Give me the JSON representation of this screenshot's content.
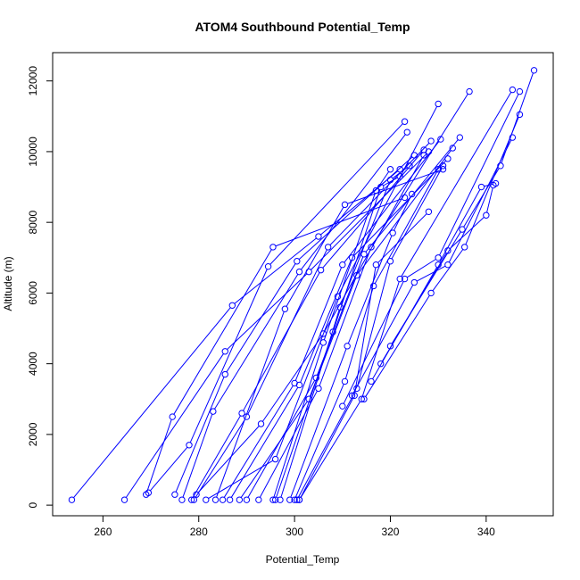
{
  "chart_data": {
    "type": "line",
    "title": "ATOM4 Southbound Potential_Temp",
    "xlabel": "Potential_Temp",
    "ylabel": "Altitude (m)",
    "xlim": [
      249.5,
      354
    ],
    "ylim": [
      -300,
      12800
    ],
    "xticks": [
      260,
      280,
      300,
      320,
      340
    ],
    "yticks": [
      0,
      2000,
      4000,
      6000,
      8000,
      10000,
      12000
    ],
    "grid": false,
    "legend": "none",
    "series_color": "#0000ff",
    "series": [
      {
        "x": [
          253.5,
          287,
          305,
          322
        ],
        "y": [
          150,
          5650,
          7600,
          9500
        ]
      },
      {
        "x": [
          264.5,
          285.5,
          303,
          328
        ],
        "y": [
          150,
          4350,
          6600,
          10000
        ]
      },
      {
        "x": [
          269,
          274.5,
          295.5,
          323
        ],
        "y": [
          300,
          2500,
          7300,
          8700
        ]
      },
      {
        "x": [
          269.5,
          278,
          294.5,
          323
        ],
        "y": [
          350,
          1700,
          6750,
          10850
        ]
      },
      {
        "x": [
          275,
          285.5,
          300.5,
          325
        ],
        "y": [
          300,
          3700,
          6900,
          9900
        ]
      },
      {
        "x": [
          276.5,
          283,
          301,
          323.5
        ],
        "y": [
          150,
          2650,
          6600,
          10550
        ]
      },
      {
        "x": [
          278.5,
          289,
          305.5,
          327
        ],
        "y": [
          150,
          2600,
          6650,
          10050
        ]
      },
      {
        "x": [
          279,
          290,
          307,
          328.5
        ],
        "y": [
          150,
          2500,
          7300,
          10300
        ]
      },
      {
        "x": [
          279.5,
          293,
          306,
          327
        ],
        "y": [
          300,
          2300,
          4850,
          9900
        ]
      },
      {
        "x": [
          281.5,
          296,
          309,
          330
        ],
        "y": [
          150,
          1300,
          5900,
          11350
        ]
      },
      {
        "x": [
          283.5,
          298,
          310.5,
          331
        ],
        "y": [
          150,
          5550,
          8500,
          9500
        ]
      },
      {
        "x": [
          285,
          300,
          310,
          330.5
        ],
        "y": [
          150,
          3450,
          6800,
          10350
        ]
      },
      {
        "x": [
          286.5,
          301,
          312,
          332
        ],
        "y": [
          150,
          3400,
          7000,
          9800
        ]
      },
      {
        "x": [
          288.5,
          303,
          313,
          333
        ],
        "y": [
          150,
          3000,
          6500,
          10100
        ]
      },
      {
        "x": [
          290,
          304.5,
          314.5,
          334.5
        ],
        "y": [
          150,
          3600,
          7100,
          10400
        ]
      },
      {
        "x": [
          292.5,
          305,
          316,
          336.5
        ],
        "y": [
          150,
          3300,
          7300,
          11700
        ]
      },
      {
        "x": [
          295.5,
          306,
          317,
          320
        ],
        "y": [
          150,
          4600,
          8900,
          9500
        ]
      },
      {
        "x": [
          296,
          308,
          318,
          322
        ],
        "y": [
          150,
          4900,
          9000,
          9300
        ]
      },
      {
        "x": [
          297,
          309.5,
          320,
          324
        ],
        "y": [
          150,
          5600,
          9200,
          9600
        ]
      },
      {
        "x": [
          299,
          311,
          320.5,
          324.5
        ],
        "y": [
          150,
          4500,
          7700,
          8800
        ]
      },
      {
        "x": [
          300,
          310.5,
          316.5,
          330
        ],
        "y": [
          150,
          3500,
          6200,
          9500
        ]
      },
      {
        "x": [
          301,
          312.5,
          317,
          328
        ],
        "y": [
          150,
          3100,
          6800,
          8300
        ]
      },
      {
        "x": [
          300.5,
          313,
          320,
          331
        ],
        "y": [
          150,
          3300,
          6900,
          9600
        ]
      },
      {
        "x": [
          301,
          314,
          322,
          345.5
        ],
        "y": [
          150,
          3000,
          6400,
          11750
        ]
      },
      {
        "x": [
          310,
          323,
          330,
          347
        ],
        "y": [
          2800,
          6400,
          7000,
          11700
        ]
      },
      {
        "x": [
          312,
          325,
          332,
          345.5
        ],
        "y": [
          3100,
          6300,
          6800,
          10400
        ]
      },
      {
        "x": [
          314.5,
          328.5,
          335.5,
          347
        ],
        "y": [
          3000,
          6000,
          7300,
          11050
        ]
      },
      {
        "x": [
          316,
          330,
          339,
          342
        ],
        "y": [
          3500,
          6800,
          9000,
          9100
        ]
      },
      {
        "x": [
          318,
          332,
          340,
          341.5
        ],
        "y": [
          4000,
          7200,
          8200,
          9050
        ]
      },
      {
        "x": [
          320,
          335,
          343,
          350
        ],
        "y": [
          4500,
          7800,
          9600,
          12300
        ]
      }
    ]
  }
}
